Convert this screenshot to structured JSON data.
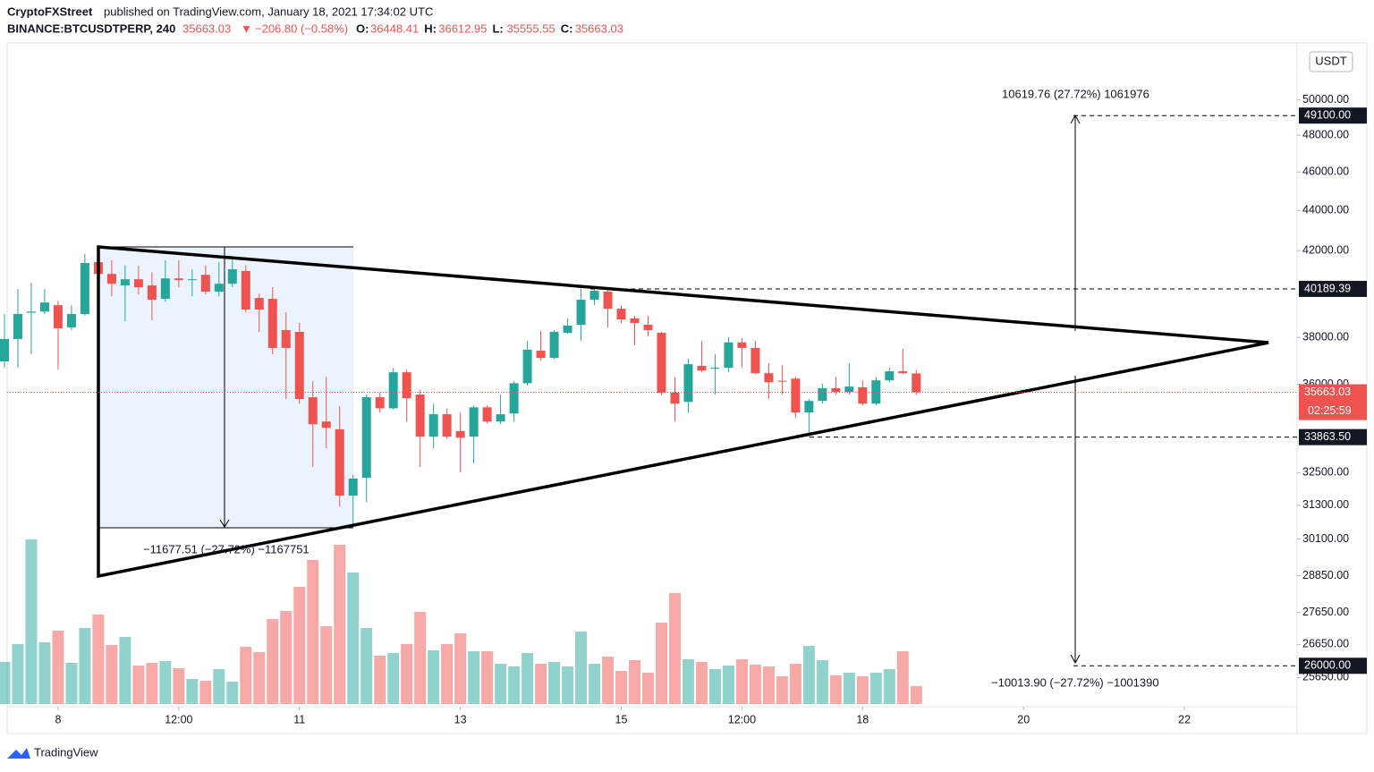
{
  "header": {
    "author": "CryptoFXStreet",
    "published": "published on TradingView.com, January 18, 2021 17:34:02 UTC",
    "symbol": "BINANCE:BTCUSDTPERP, 240",
    "last": "35663.03",
    "arrow": "▼",
    "change": "−206.80 (−0.58%)",
    "ohlc": [
      [
        "O:",
        "36448.41"
      ],
      [
        "H:",
        "36612.95"
      ],
      [
        "L:",
        "35555.55"
      ],
      [
        "C:",
        "35663.03"
      ]
    ]
  },
  "footer": {
    "brand": "TradingView"
  },
  "chart_data": {
    "type": "candlestick",
    "currency": "USDT",
    "log_scale": true,
    "up_color": "#26a69a",
    "down_color": "#ef5350",
    "x": [
      7.3333,
      7.5,
      7.6667,
      7.8333,
      8,
      8.1667,
      8.3333,
      8.5,
      8.6667,
      8.8333,
      9,
      9.1667,
      9.3333,
      9.5,
      9.6667,
      9.8333,
      10,
      10.1667,
      10.3333,
      10.5,
      10.6667,
      10.8333,
      11,
      11.1667,
      11.3333,
      11.5,
      11.6667,
      11.8333,
      12,
      12.1667,
      12.3333,
      12.5,
      12.6667,
      12.8333,
      13,
      13.1667,
      13.3333,
      13.5,
      13.6667,
      13.8333,
      14,
      14.1667,
      14.3333,
      14.5,
      14.6667,
      14.8333,
      15,
      15.1667,
      15.3333,
      15.5,
      15.6667,
      15.8333,
      16,
      16.1667,
      16.3333,
      16.5,
      16.6667,
      16.8333,
      17,
      17.1667,
      17.3333,
      17.5,
      17.6667,
      17.8333,
      18,
      18.1667,
      18.3333,
      18.5,
      18.6667
    ],
    "open": [
      36960,
      37930,
      39100,
      39150,
      39440,
      38440,
      39040,
      41450,
      40890,
      40350,
      40640,
      40350,
      39730,
      40680,
      40600,
      40850,
      40060,
      40430,
      41030,
      39770,
      39730,
      38320,
      38240,
      35460,
      34480,
      34170,
      31650,
      32310,
      35460,
      35010,
      36500,
      35570,
      33880,
      34770,
      34100,
      33880,
      35050,
      34480,
      34800,
      36040,
      37420,
      37110,
      38200,
      38560,
      39690,
      40060,
      39280,
      38840,
      38560,
      38200,
      35650,
      35270,
      36770,
      36650,
      36690,
      37780,
      37540,
      36460,
      36140,
      36230,
      34840,
      35310,
      35830,
      35680,
      35870,
      35200,
      36160,
      36540,
      36448.41
    ],
    "high": [
      39040,
      40190,
      40470,
      40190,
      39640,
      39440,
      41840,
      41750,
      41540,
      41300,
      41260,
      40970,
      41540,
      41540,
      41100,
      41300,
      41450,
      41750,
      41300,
      39970,
      40270,
      39120,
      38640,
      36120,
      36310,
      35090,
      32410,
      35570,
      35650,
      36690,
      36610,
      35760,
      35200,
      35010,
      34840,
      35130,
      35130,
      35570,
      36120,
      37850,
      38280,
      38320,
      38840,
      40190,
      40189.39,
      40140,
      39440,
      38960,
      38960,
      38240,
      36310,
      37070,
      37850,
      37270,
      38010,
      37970,
      37850,
      36880,
      36800,
      36310,
      35390,
      36020,
      36310,
      36880,
      36160,
      36310,
      36690,
      37500,
      36612.95
    ],
    "low": [
      36690,
      36690,
      37270,
      39040,
      36610,
      38320,
      38960,
      40850,
      39850,
      38720,
      39930,
      38760,
      39600,
      40270,
      39850,
      39930,
      39850,
      40270,
      39120,
      38240,
      37270,
      35390,
      35200,
      32720,
      33430,
      31250,
      30500,
      31420,
      34840,
      34950,
      34480,
      32720,
      33430,
      33800,
      32510,
      32850,
      34400,
      34370,
      34480,
      35940,
      36990,
      37070,
      38160,
      37850,
      39440,
      38440,
      38640,
      37660,
      38040,
      35570,
      34480,
      34840,
      36500,
      35570,
      36500,
      36690,
      36420,
      35390,
      35570,
      34620,
      33863.5,
      35200,
      35570,
      35570,
      35130,
      35130,
      36080,
      36420,
      35555.55
    ],
    "close": [
      37930,
      39040,
      39150,
      39560,
      38400,
      39040,
      41410,
      40890,
      40430,
      40640,
      40270,
      39690,
      40680,
      40600,
      40640,
      40060,
      40430,
      41110,
      39240,
      39240,
      37540,
      37540,
      35390,
      34370,
      34230,
      31650,
      32280,
      35460,
      35010,
      36500,
      35420,
      33880,
      34770,
      33880,
      33840,
      35050,
      34480,
      34770,
      36040,
      37460,
      37110,
      38240,
      38520,
      39690,
      40100,
      39280,
      38800,
      38640,
      38320,
      35640,
      35200,
      36840,
      36570,
      36690,
      37780,
      37540,
      36460,
      36080,
      36120,
      34840,
      35310,
      35830,
      35680,
      35900,
      35200,
      36160,
      36540,
      36460,
      35663.03
    ],
    "volume": [
      47,
      67,
      184,
      69,
      82,
      46,
      85,
      100,
      66,
      75,
      43,
      46,
      48,
      40,
      28,
      26,
      39,
      25,
      64,
      58,
      95,
      104,
      131,
      161,
      87,
      178,
      147,
      85,
      54,
      57,
      67,
      103,
      60,
      67,
      79,
      59,
      59,
      45,
      42,
      57,
      45,
      47,
      42,
      81,
      45,
      53,
      37,
      49,
      35,
      91,
      124,
      50,
      47,
      39,
      43,
      50,
      44,
      42,
      31,
      45,
      65,
      49,
      32,
      35,
      31,
      35,
      39,
      59,
      20
    ],
    "xlim": [
      7.367,
      23.4
    ],
    "xticks": [
      {
        "value": 8,
        "label": "8"
      },
      {
        "value": 9.5,
        "label": "12:00"
      },
      {
        "value": 11,
        "label": "11"
      },
      {
        "value": 13,
        "label": "13"
      },
      {
        "value": 15,
        "label": "15"
      },
      {
        "value": 16.5,
        "label": "12:00"
      },
      {
        "value": 18,
        "label": "18"
      },
      {
        "value": 20,
        "label": "20"
      },
      {
        "value": 22,
        "label": "22"
      }
    ],
    "ylim": [
      24800,
      53400
    ],
    "yticks": [
      {
        "value": 50000,
        "label": "50000.00"
      },
      {
        "value": 48000,
        "label": "48000.00"
      },
      {
        "value": 46000,
        "label": "46000.00"
      },
      {
        "value": 44000,
        "label": "44000.00"
      },
      {
        "value": 42000,
        "label": "42000.00"
      },
      {
        "value": 38000,
        "label": "38000.00"
      },
      {
        "value": 36000,
        "label": "36000.00"
      },
      {
        "value": 32500,
        "label": "32500.00"
      },
      {
        "value": 31300,
        "label": "31300.00"
      },
      {
        "value": 30100,
        "label": "30100.00"
      },
      {
        "value": 28850,
        "label": "28850.00"
      },
      {
        "value": 27650,
        "label": "27650.00"
      },
      {
        "value": 26650,
        "label": "26650.00"
      },
      {
        "value": 25650,
        "label": "25650.00"
      }
    ],
    "levels": [
      {
        "value": 49100,
        "label": "49100.00"
      },
      {
        "value": 40189.39,
        "label": "40189.39"
      },
      {
        "value": 33863.5,
        "label": "33863.50"
      },
      {
        "value": 26000,
        "label": "26000.00"
      }
    ],
    "last_price": {
      "value": 35663.03,
      "label": "35663.03"
    },
    "countdown": "02:25:59",
    "annotations": [
      "10619.76 (27.72%) 1061976",
      "−11677.51 (−27.72%) −1167751",
      "−10013.90 (−27.72%) −1001390"
    ]
  }
}
